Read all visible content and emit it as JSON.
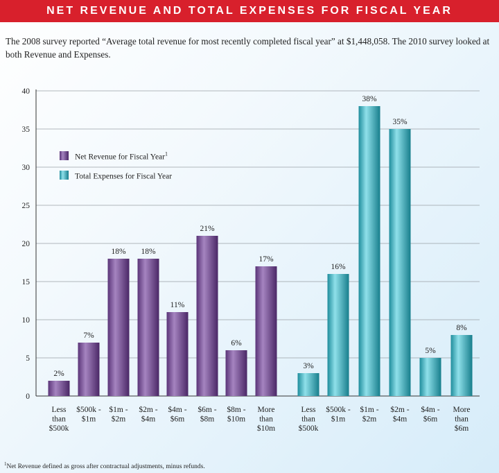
{
  "header": {
    "title": "NET REVENUE AND TOTAL EXPENSES FOR FISCAL YEAR"
  },
  "intro": {
    "text": "The 2008 survey reported “Average total revenue for most recently completed fiscal year” at $1,448,058. The 2010 survey looked at both Revenue and Expenses."
  },
  "footnote": {
    "marker": "1",
    "text": "Net Revenue defined as gross after contractual adjustments, minus refunds."
  },
  "colors": {
    "revenue": "#7a4f96",
    "expenses": "#3ab3c2",
    "title_bar": "#d8202c"
  },
  "chart_data": {
    "type": "bar",
    "ylim": [
      0,
      40
    ],
    "yticks": [
      0,
      5,
      10,
      15,
      20,
      25,
      30,
      35,
      40
    ],
    "grid": true,
    "legend_position": "top-left",
    "legend": [
      {
        "label": "Net Revenue for Fiscal Year",
        "superscript": "1",
        "color": "#7a4f96"
      },
      {
        "label": "Total Expenses for Fiscal Year",
        "superscript": "",
        "color": "#3ab3c2"
      }
    ],
    "series": [
      {
        "name": "Net Revenue for Fiscal Year",
        "categories": [
          [
            "Less",
            "than",
            "$500k"
          ],
          [
            "$500k -",
            "$1m"
          ],
          [
            "$1m -",
            "$2m"
          ],
          [
            "$2m -",
            "$4m"
          ],
          [
            "$4m -",
            "$6m"
          ],
          [
            "$6m -",
            "$8m"
          ],
          [
            "$8m -",
            "$10m"
          ],
          [
            "More",
            "than",
            "$10m"
          ]
        ],
        "values": [
          2,
          7,
          18,
          18,
          11,
          21,
          6,
          17
        ],
        "labels": [
          "2%",
          "7%",
          "18%",
          "18%",
          "11%",
          "21%",
          "6%",
          "17%"
        ]
      },
      {
        "name": "Total Expenses for Fiscal Year",
        "categories": [
          [
            "Less",
            "than",
            "$500k"
          ],
          [
            "$500k -",
            "$1m"
          ],
          [
            "$1m -",
            "$2m"
          ],
          [
            "$2m -",
            "$4m"
          ],
          [
            "$4m -",
            "$6m"
          ],
          [
            "More",
            "than",
            "$6m"
          ]
        ],
        "values": [
          3,
          16,
          38,
          35,
          5,
          8
        ],
        "labels": [
          "3%",
          "16%",
          "38%",
          "35%",
          "5%",
          "8%"
        ]
      }
    ]
  }
}
